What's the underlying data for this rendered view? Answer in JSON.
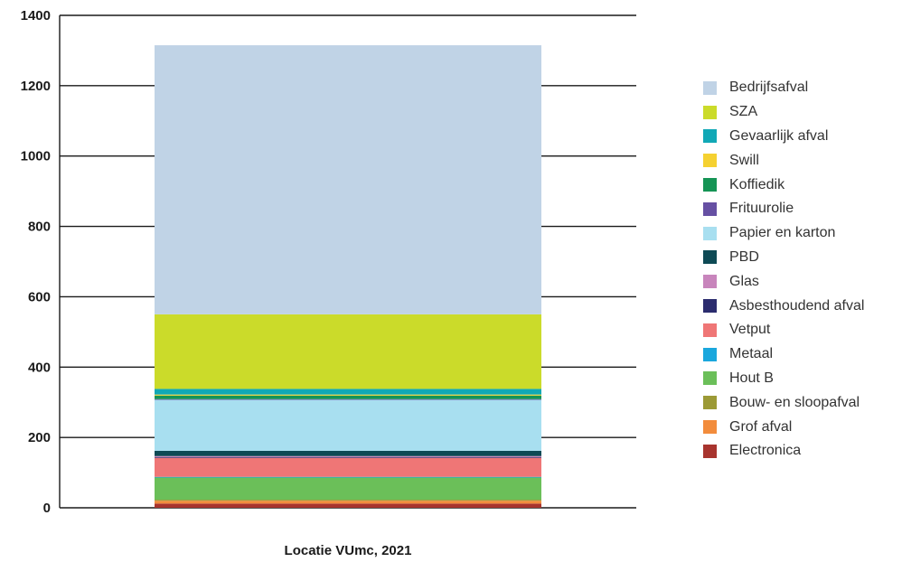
{
  "chart_data": {
    "type": "bar",
    "stacked": true,
    "categories": [
      "Locatie VUmc, 2021"
    ],
    "xlabel": "Locatie VUmc, 2021",
    "ylim": [
      0,
      1400
    ],
    "yticks": [
      0,
      200,
      400,
      600,
      800,
      1000,
      1200,
      1400
    ],
    "grid": true,
    "legend_position": "right",
    "series": [
      {
        "name": "Electronica",
        "color": "#a8342e",
        "values": [
          12
        ]
      },
      {
        "name": "Grof afval",
        "color": "#f28c3c",
        "values": [
          8
        ]
      },
      {
        "name": "Bouw- en sloopafval",
        "color": "#9c9a36",
        "values": [
          3
        ]
      },
      {
        "name": "Hout B",
        "color": "#6bbf59",
        "values": [
          63
        ]
      },
      {
        "name": "Metaal",
        "color": "#1aa7dd",
        "values": [
          2
        ]
      },
      {
        "name": "Vetput",
        "color": "#ef7676",
        "values": [
          54
        ]
      },
      {
        "name": "Asbesthoudend afval",
        "color": "#2b2c6e",
        "values": [
          2
        ]
      },
      {
        "name": "Glas",
        "color": "#c885bc",
        "values": [
          3
        ]
      },
      {
        "name": "PBD",
        "color": "#0e4a55",
        "values": [
          15
        ]
      },
      {
        "name": "Papier en karton",
        "color": "#a8dff0",
        "values": [
          145
        ]
      },
      {
        "name": "Frituurolie",
        "color": "#6650a3",
        "values": [
          2
        ]
      },
      {
        "name": "Koffiedik",
        "color": "#159455",
        "values": [
          10
        ]
      },
      {
        "name": "Swill",
        "color": "#f5d131",
        "values": [
          3
        ]
      },
      {
        "name": "Gevaarlijk afval",
        "color": "#11a8b6",
        "values": [
          16
        ]
      },
      {
        "name": "SZA",
        "color": "#cbdb2a",
        "values": [
          212
        ]
      },
      {
        "name": "Bedrijfsafval",
        "color": "#c0d3e6",
        "values": [
          765
        ]
      }
    ],
    "legend_order": [
      "Bedrijfsafval",
      "SZA",
      "Gevaarlijk afval",
      "Swill",
      "Koffiedik",
      "Frituurolie",
      "Papier en karton",
      "PBD",
      "Glas",
      "Asbesthoudend afval",
      "Vetput",
      "Metaal",
      "Hout B",
      "Bouw- en sloopafval",
      "Grof afval",
      "Electronica"
    ]
  }
}
